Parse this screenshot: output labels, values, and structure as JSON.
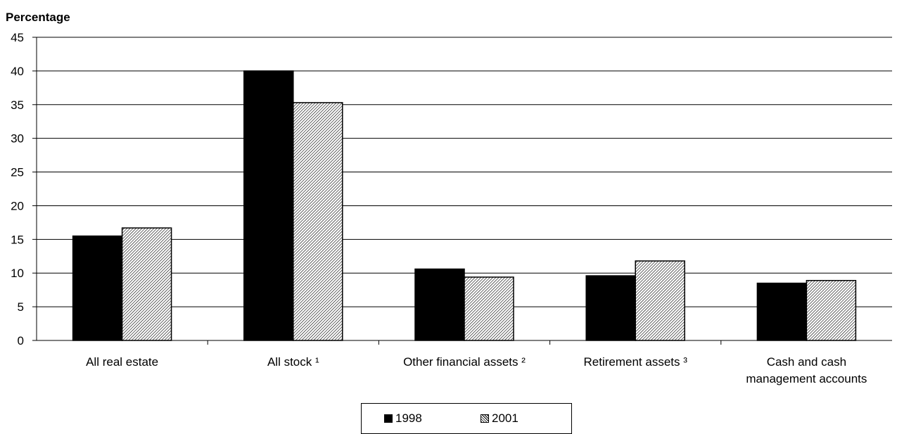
{
  "chart_data": {
    "type": "bar",
    "ylabel": "Percentage",
    "ylim": [
      0,
      45
    ],
    "yticks": [
      "0",
      "5",
      "10",
      "15",
      "20",
      "25",
      "30",
      "35",
      "40",
      "45"
    ],
    "categories": [
      [
        "All real estate"
      ],
      [
        "All stock ¹"
      ],
      [
        "Other financial assets ²"
      ],
      [
        "Retirement assets ³"
      ],
      [
        "Cash and cash",
        "management accounts"
      ]
    ],
    "series": [
      {
        "name": "1998",
        "values": [
          15.5,
          40.0,
          10.6,
          9.6,
          8.5
        ],
        "fill": "solid",
        "color": "#000000"
      },
      {
        "name": "2001",
        "values": [
          16.7,
          35.3,
          9.4,
          11.8,
          8.9
        ],
        "fill": "hatch",
        "color": "#000000"
      }
    ],
    "grid": true,
    "legend_position": "bottom-center"
  }
}
